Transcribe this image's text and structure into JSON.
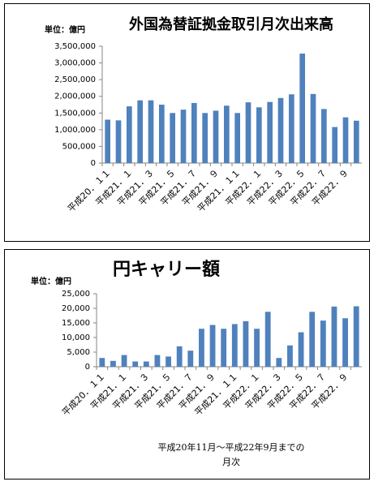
{
  "chart_data": [
    {
      "type": "bar",
      "title": "外国為替証拠金取引月次出来高",
      "unit_label": "単位：億円",
      "categories": [
        "平成20．１１",
        null,
        "平成21．１",
        null,
        "平成21．３",
        null,
        "平成21．５",
        null,
        "平成21．７",
        null,
        "平成21．９",
        null,
        "平成21．１１",
        null,
        "平成22．１",
        null,
        "平成22．３",
        null,
        "平成22．５",
        null,
        "平成22．７",
        null,
        "平成22．９",
        null
      ],
      "values": [
        1300000,
        1280000,
        1700000,
        1880000,
        1880000,
        1750000,
        1500000,
        1600000,
        1800000,
        1500000,
        1570000,
        1720000,
        1500000,
        1820000,
        1670000,
        1830000,
        1950000,
        2060000,
        3280000,
        2070000,
        1620000,
        1080000,
        1370000,
        1270000
      ],
      "color": "#4f81bd",
      "grid": false,
      "ylim": [
        0,
        3500000
      ],
      "yticks": [
        0,
        {
          "value": 500000,
          "label": "500,000"
        },
        {
          "value": 1000000,
          "label": "1,000,000"
        },
        {
          "value": 1500000,
          "label": "1,500,000"
        },
        {
          "value": 2000000,
          "label": "2,000,000"
        },
        {
          "value": 2500000,
          "label": "2,500,000"
        },
        {
          "value": 3000000,
          "label": "3,000,000"
        },
        {
          "value": 3500000,
          "label": "3,500,000"
        }
      ]
    },
    {
      "type": "bar",
      "title": "円キャリー額",
      "unit_label": "単位：億円",
      "categories": [
        "平成20．１１",
        null,
        "平成21．１",
        null,
        "平成21．３",
        null,
        "平成21．５",
        null,
        "平成21．７",
        null,
        "平成21．９",
        null,
        "平成21．１１",
        null,
        "平成22．１",
        null,
        "平成22．３",
        null,
        "平成22．５",
        null,
        "平成22．７",
        null,
        "平成22．９",
        null
      ],
      "values": [
        3000,
        2000,
        4000,
        1800,
        1800,
        4000,
        3500,
        7000,
        5500,
        13000,
        14300,
        13000,
        14600,
        15600,
        13000,
        18800,
        3000,
        7300,
        11800,
        18800,
        15800,
        20600,
        16600,
        20700
      ],
      "color": "#4f81bd",
      "grid": false,
      "ylim": [
        0,
        25000
      ],
      "yticks": [
        0,
        {
          "value": 5000,
          "label": "5,000"
        },
        {
          "value": 10000,
          "label": "10,000"
        },
        {
          "value": 15000,
          "label": "15,000"
        },
        {
          "value": 20000,
          "label": "20,000"
        },
        {
          "value": 25000,
          "label": "25,000"
        }
      ],
      "xlabel_lines": [
        "平成20年11月～平成22年9月までの",
        "月次"
      ]
    }
  ]
}
